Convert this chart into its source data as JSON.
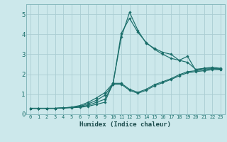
{
  "xlabel": "Humidex (Indice chaleur)",
  "bg_color": "#cce8eb",
  "grid_color": "#aacdd2",
  "line_color": "#1a6e6a",
  "xlim": [
    -0.5,
    23.5
  ],
  "ylim": [
    0,
    5.5
  ],
  "xticks": [
    0,
    1,
    2,
    3,
    4,
    5,
    6,
    7,
    8,
    9,
    10,
    11,
    12,
    13,
    14,
    15,
    16,
    17,
    18,
    19,
    20,
    21,
    22,
    23
  ],
  "yticks": [
    0,
    1,
    2,
    3,
    4,
    5
  ],
  "lines": [
    [
      0.3,
      0.3,
      0.3,
      0.3,
      0.32,
      0.33,
      0.35,
      0.4,
      0.5,
      0.6,
      1.55,
      3.85,
      5.1,
      4.2,
      3.55,
      3.3,
      3.1,
      3.0,
      2.7,
      2.9,
      2.2,
      2.3,
      2.35,
      2.3
    ],
    [
      0.3,
      0.3,
      0.3,
      0.3,
      0.32,
      0.34,
      0.38,
      0.45,
      0.6,
      0.75,
      1.5,
      4.05,
      4.8,
      4.1,
      3.6,
      3.25,
      3.0,
      2.8,
      2.7,
      2.6,
      2.25,
      2.3,
      2.3,
      2.25
    ],
    [
      0.3,
      0.3,
      0.3,
      0.3,
      0.32,
      0.35,
      0.4,
      0.52,
      0.7,
      0.95,
      1.5,
      1.5,
      1.2,
      1.05,
      1.2,
      1.42,
      1.58,
      1.74,
      1.92,
      2.08,
      2.13,
      2.18,
      2.23,
      2.23
    ],
    [
      0.3,
      0.3,
      0.3,
      0.3,
      0.32,
      0.36,
      0.44,
      0.6,
      0.82,
      1.08,
      1.55,
      1.55,
      1.25,
      1.1,
      1.25,
      1.48,
      1.63,
      1.78,
      1.98,
      2.13,
      2.18,
      2.23,
      2.28,
      2.28
    ]
  ]
}
